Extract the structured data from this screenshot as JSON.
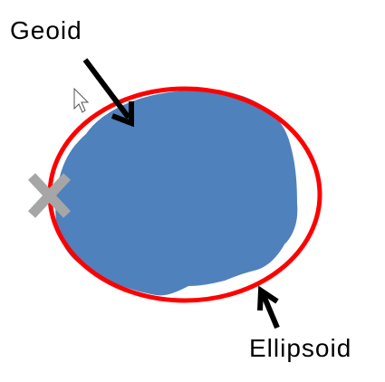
{
  "diagram": {
    "labels": {
      "geoid": "Geoid",
      "ellipsoid": "Ellipsoid"
    },
    "icons": {
      "cursor": "mouse-pointer-icon",
      "marker": "x-mark-icon"
    },
    "colors": {
      "geoid_fill": "#4F81BD",
      "ellipsoid_stroke": "#FF0000",
      "arrow": "#000000",
      "marker": "#A6A6A6",
      "background": "#FFFFFF"
    }
  }
}
